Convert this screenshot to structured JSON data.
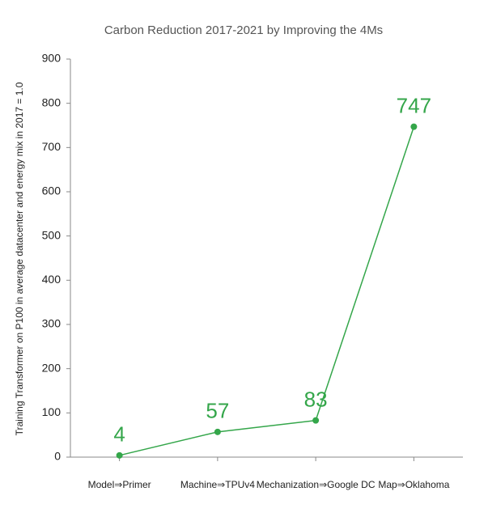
{
  "chart_data": {
    "type": "line",
    "title": "Carbon Reduction 2017-2021 by Improving the 4Ms",
    "y_label": "Training Transformer on P100 in average datacenter and energy mix in 2017 = 1.0",
    "categories": [
      "Model⇒Primer",
      "Machine⇒TPUv4",
      "Mechanization⇒Google DC",
      "Map⇒Oklahoma"
    ],
    "values": [
      4,
      57,
      83,
      747
    ],
    "color": "#34a64a",
    "ylim": [
      0,
      900
    ],
    "yticks": [
      0,
      100,
      200,
      300,
      400,
      500,
      600,
      700,
      800,
      900
    ]
  }
}
